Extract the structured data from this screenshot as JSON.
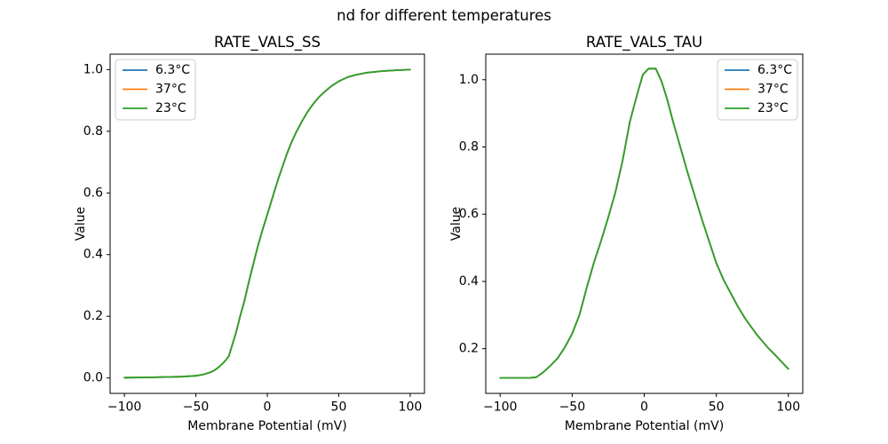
{
  "figure": {
    "suptitle": "nd for different temperatures",
    "background_color": "#ffffff",
    "text_color": "#000000",
    "spine_color": "#000000",
    "legend_border_color": "#cccccc"
  },
  "chart_data": [
    {
      "type": "line",
      "title": "RATE_VALS_SS",
      "xlabel": "Membrane Potential (mV)",
      "ylabel": "Value",
      "xlim": [
        -110,
        110
      ],
      "ylim": [
        -0.05,
        1.05
      ],
      "xticks": [
        -100,
        -50,
        0,
        50,
        100
      ],
      "xtick_labels": [
        "−100",
        "−50",
        "0",
        "50",
        "100"
      ],
      "yticks": [
        0.0,
        0.2,
        0.4,
        0.6,
        0.8,
        1.0
      ],
      "ytick_labels": [
        "0.0",
        "0.2",
        "0.4",
        "0.6",
        "0.8",
        "1.0"
      ],
      "grid": false,
      "legend_position": "upper-left",
      "series": [
        {
          "name": "6.3°C",
          "color": "#1f77b4",
          "x": [
            -100,
            -80,
            -60,
            -50,
            -45,
            -40,
            -37,
            -34,
            -31,
            -29,
            -27,
            -25,
            -22,
            -19,
            -16,
            -13,
            -10,
            -7,
            -4,
            -1,
            2,
            5,
            8,
            11,
            14,
            17,
            20,
            24,
            28,
            32,
            36,
            40,
            45,
            50,
            56,
            62,
            70,
            80,
            90,
            100
          ],
          "y": [
            0.001,
            0.002,
            0.004,
            0.007,
            0.011,
            0.018,
            0.025,
            0.035,
            0.048,
            0.058,
            0.07,
            0.1,
            0.145,
            0.2,
            0.25,
            0.31,
            0.365,
            0.42,
            0.47,
            0.515,
            0.56,
            0.605,
            0.65,
            0.69,
            0.73,
            0.765,
            0.795,
            0.83,
            0.862,
            0.888,
            0.91,
            0.928,
            0.947,
            0.962,
            0.975,
            0.983,
            0.99,
            0.995,
            0.998,
            1.0
          ]
        },
        {
          "name": "37°C",
          "color": "#ff7f0e",
          "x": [
            -100,
            -80,
            -60,
            -50,
            -45,
            -40,
            -37,
            -34,
            -31,
            -29,
            -27,
            -25,
            -22,
            -19,
            -16,
            -13,
            -10,
            -7,
            -4,
            -1,
            2,
            5,
            8,
            11,
            14,
            17,
            20,
            24,
            28,
            32,
            36,
            40,
            45,
            50,
            56,
            62,
            70,
            80,
            90,
            100
          ],
          "y": [
            0.001,
            0.002,
            0.004,
            0.007,
            0.011,
            0.018,
            0.025,
            0.035,
            0.048,
            0.058,
            0.07,
            0.1,
            0.145,
            0.2,
            0.25,
            0.31,
            0.365,
            0.42,
            0.47,
            0.515,
            0.56,
            0.605,
            0.65,
            0.69,
            0.73,
            0.765,
            0.795,
            0.83,
            0.862,
            0.888,
            0.91,
            0.928,
            0.947,
            0.962,
            0.975,
            0.983,
            0.99,
            0.995,
            0.998,
            1.0
          ]
        },
        {
          "name": "23°C",
          "color": "#2ca02c",
          "x": [
            -100,
            -80,
            -60,
            -50,
            -45,
            -40,
            -37,
            -34,
            -31,
            -29,
            -27,
            -25,
            -22,
            -19,
            -16,
            -13,
            -10,
            -7,
            -4,
            -1,
            2,
            5,
            8,
            11,
            14,
            17,
            20,
            24,
            28,
            32,
            36,
            40,
            45,
            50,
            56,
            62,
            70,
            80,
            90,
            100
          ],
          "y": [
            0.001,
            0.002,
            0.004,
            0.007,
            0.011,
            0.018,
            0.025,
            0.035,
            0.048,
            0.058,
            0.07,
            0.1,
            0.145,
            0.2,
            0.25,
            0.31,
            0.365,
            0.42,
            0.47,
            0.515,
            0.56,
            0.605,
            0.65,
            0.69,
            0.73,
            0.765,
            0.795,
            0.83,
            0.862,
            0.888,
            0.91,
            0.928,
            0.947,
            0.962,
            0.975,
            0.983,
            0.99,
            0.995,
            0.998,
            1.0
          ]
        }
      ],
      "note": "all three temperature curves overlap exactly; green (23°C) drawn last"
    },
    {
      "type": "line",
      "title": "RATE_VALS_TAU",
      "xlabel": "Membrane Potential (mV)",
      "ylabel": "Value",
      "xlim": [
        -110,
        110
      ],
      "ylim": [
        0.067,
        1.076
      ],
      "xticks": [
        -100,
        -50,
        0,
        50,
        100
      ],
      "xtick_labels": [
        "−100",
        "−50",
        "0",
        "50",
        "100"
      ],
      "yticks": [
        0.2,
        0.4,
        0.6,
        0.8,
        1.0
      ],
      "ytick_labels": [
        "0.2",
        "0.4",
        "0.6",
        "0.8",
        "1.0"
      ],
      "grid": false,
      "legend_position": "upper-right",
      "series": [
        {
          "name": "6.3°C",
          "color": "#1f77b4",
          "x": [
            -100,
            -90,
            -80,
            -75,
            -70,
            -65,
            -60,
            -55,
            -50,
            -45,
            -40,
            -35,
            -30,
            -25,
            -20,
            -15,
            -10,
            -5,
            -1,
            3,
            8,
            12,
            16,
            20,
            25,
            30,
            35,
            40,
            45,
            50,
            55,
            60,
            65,
            70,
            75,
            78,
            82,
            86,
            90,
            95,
            100
          ],
          "y": [
            0.113,
            0.113,
            0.113,
            0.115,
            0.13,
            0.15,
            0.172,
            0.205,
            0.245,
            0.3,
            0.38,
            0.455,
            0.52,
            0.59,
            0.665,
            0.76,
            0.875,
            0.955,
            1.015,
            1.033,
            1.033,
            0.995,
            0.94,
            0.875,
            0.8,
            0.725,
            0.655,
            0.585,
            0.52,
            0.455,
            0.405,
            0.365,
            0.325,
            0.29,
            0.26,
            0.242,
            0.222,
            0.202,
            0.185,
            0.162,
            0.14
          ]
        },
        {
          "name": "37°C",
          "color": "#ff7f0e",
          "x": [
            -100,
            -90,
            -80,
            -75,
            -70,
            -65,
            -60,
            -55,
            -50,
            -45,
            -40,
            -35,
            -30,
            -25,
            -20,
            -15,
            -10,
            -5,
            -1,
            3,
            8,
            12,
            16,
            20,
            25,
            30,
            35,
            40,
            45,
            50,
            55,
            60,
            65,
            70,
            75,
            78,
            82,
            86,
            90,
            95,
            100
          ],
          "y": [
            0.113,
            0.113,
            0.113,
            0.115,
            0.13,
            0.15,
            0.172,
            0.205,
            0.245,
            0.3,
            0.38,
            0.455,
            0.52,
            0.59,
            0.665,
            0.76,
            0.875,
            0.955,
            1.015,
            1.033,
            1.033,
            0.995,
            0.94,
            0.875,
            0.8,
            0.725,
            0.655,
            0.585,
            0.52,
            0.455,
            0.405,
            0.365,
            0.325,
            0.29,
            0.26,
            0.242,
            0.222,
            0.202,
            0.185,
            0.162,
            0.14
          ]
        },
        {
          "name": "23°C",
          "color": "#2ca02c",
          "x": [
            -100,
            -90,
            -80,
            -75,
            -70,
            -65,
            -60,
            -55,
            -50,
            -45,
            -40,
            -35,
            -30,
            -25,
            -20,
            -15,
            -10,
            -5,
            -1,
            3,
            8,
            12,
            16,
            20,
            25,
            30,
            35,
            40,
            45,
            50,
            55,
            60,
            65,
            70,
            75,
            78,
            82,
            86,
            90,
            95,
            100
          ],
          "y": [
            0.113,
            0.113,
            0.113,
            0.115,
            0.13,
            0.15,
            0.172,
            0.205,
            0.245,
            0.3,
            0.38,
            0.455,
            0.52,
            0.59,
            0.665,
            0.76,
            0.875,
            0.955,
            1.015,
            1.033,
            1.033,
            0.995,
            0.94,
            0.875,
            0.8,
            0.725,
            0.655,
            0.585,
            0.52,
            0.455,
            0.405,
            0.365,
            0.325,
            0.29,
            0.26,
            0.242,
            0.222,
            0.202,
            0.185,
            0.162,
            0.14
          ]
        }
      ],
      "note": "all three temperature curves overlap exactly; green (23°C) drawn last"
    }
  ]
}
